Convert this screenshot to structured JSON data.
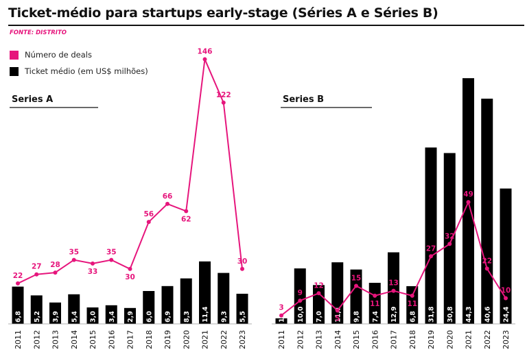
{
  "title": "Ticket-médio para startups early-stage (Séries A e Séries B)",
  "source": "FONTE: DISTRITO",
  "colors": {
    "bars": "#000000",
    "line": "#e6157c",
    "text": "#111111"
  },
  "legend": {
    "deals": "Número de deals",
    "ticket": "Ticket médio (em US$ milhões)"
  },
  "chart_data": [
    {
      "type": "bar+line",
      "title": "Series A",
      "categories": [
        "2011",
        "2012",
        "2013",
        "2014",
        "2015",
        "2016",
        "2017",
        "2018",
        "2019",
        "2020",
        "2021",
        "2022",
        "2023"
      ],
      "series": [
        {
          "name": "Ticket médio (em US$ milhões)",
          "type": "bar",
          "values": [
            6.8,
            5.2,
            3.9,
            5.4,
            3.0,
            3.4,
            2.9,
            6.0,
            6.9,
            8.3,
            11.4,
            9.3,
            5.5
          ],
          "labels": [
            "6,8",
            "5,2",
            "3,9",
            "5,4",
            "3,0",
            "3,4",
            "2,9",
            "6,0",
            "6,9",
            "8,3",
            "11,4",
            "9,3",
            "5,5"
          ]
        },
        {
          "name": "Número de deals",
          "type": "line",
          "values": [
            22,
            27,
            28,
            35,
            33,
            35,
            30,
            56,
            66,
            62,
            146,
            122,
            30
          ],
          "labels": [
            "22",
            "27",
            "28",
            "35",
            "33",
            "35",
            "30",
            "56",
            "66",
            "62",
            "146",
            "122",
            "30"
          ]
        }
      ]
    },
    {
      "type": "bar+line",
      "title": "Series B",
      "categories": [
        "2011",
        "2012",
        "2013",
        "2014",
        "2015",
        "2016",
        "2017",
        "2018",
        "2019",
        "2020",
        "2021",
        "2022",
        "2023"
      ],
      "series": [
        {
          "name": "Ticket médio (em US$ milhões)",
          "type": "bar",
          "values": [
            1,
            10.0,
            7.0,
            11.1,
            9.8,
            7.4,
            12.9,
            6.8,
            31.8,
            30.8,
            44.3,
            40.6,
            24.4
          ],
          "labels": [
            "1",
            "10,0",
            "7,0",
            "11,1",
            "9,8",
            "7,4",
            "12,9",
            "6,8",
            "31,8",
            "30,8",
            "44,3",
            "40,6",
            "24,4"
          ]
        },
        {
          "name": "Número de deals",
          "type": "line",
          "values": [
            3,
            9,
            12,
            5,
            15,
            11,
            13,
            11,
            27,
            32,
            49,
            22,
            10
          ],
          "labels": [
            "3",
            "9",
            "12",
            "5",
            "15",
            "11",
            "13",
            "11",
            "27",
            "32",
            "49",
            "22",
            "10"
          ]
        }
      ]
    }
  ]
}
